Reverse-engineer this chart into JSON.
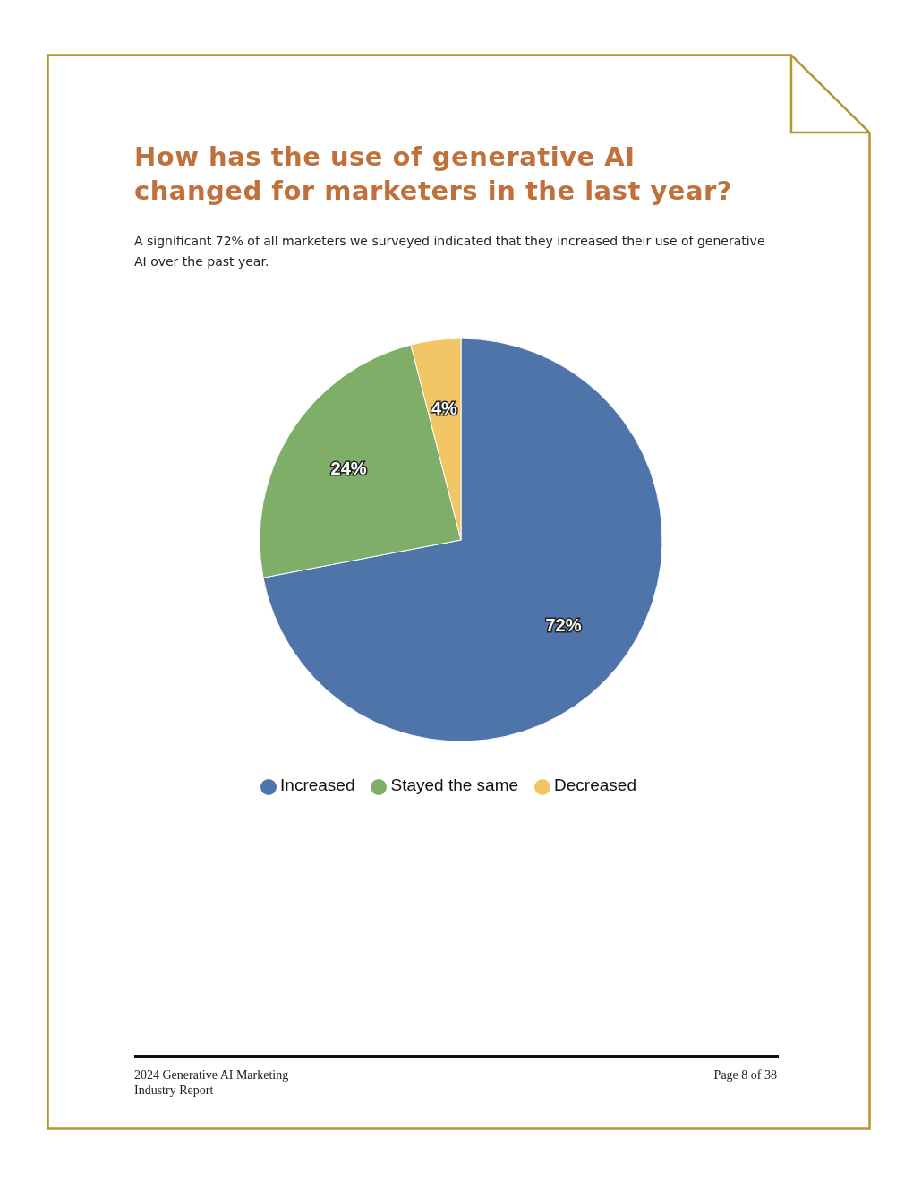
{
  "chart_data": {
    "type": "pie",
    "title": "How has the use of generative AI changed for marketers in the last year?",
    "subtitle": "A significant 72% of all marketers we surveyed indicated that they increased their use of generative AI over the past year.",
    "categories": [
      "Increased",
      "Stayed the same",
      "Decreased"
    ],
    "values": [
      72,
      24,
      4
    ],
    "colors": [
      "#4f74aa",
      "#7fae68",
      "#f2c566"
    ],
    "value_labels": [
      "72%",
      "24%",
      "4%"
    ],
    "legend": "bottom",
    "annotations": [
      "2024 Generative AI Marketing Industry Report",
      "Page 8 of 38"
    ]
  }
}
